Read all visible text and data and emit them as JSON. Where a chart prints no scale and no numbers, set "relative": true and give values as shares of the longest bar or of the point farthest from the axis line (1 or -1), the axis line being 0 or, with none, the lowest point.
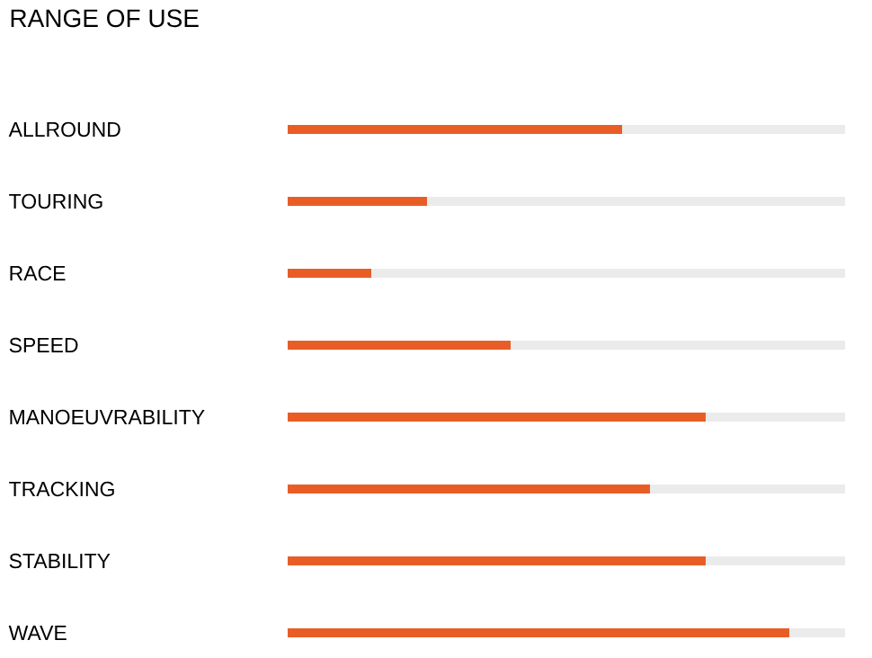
{
  "chart_data": {
    "type": "bar",
    "title": "RANGE OF USE",
    "orientation": "horizontal",
    "stacked": true,
    "relative": true,
    "categories": [
      "ALLROUND",
      "TOURING",
      "RACE",
      "SPEED",
      "MANOEUVRABILITY",
      "TRACKING",
      "STABILITY",
      "WAVE"
    ],
    "series": [
      {
        "color": "#e85d26",
        "values": [
          0.6,
          0.25,
          0.15,
          0.4,
          0.75,
          0.65,
          0.75,
          0.9
        ]
      },
      {
        "color": "#ebebeb",
        "values": [
          0.4,
          0.75,
          0.85,
          0.6,
          0.25,
          0.35,
          0.25,
          0.1
        ]
      }
    ]
  }
}
